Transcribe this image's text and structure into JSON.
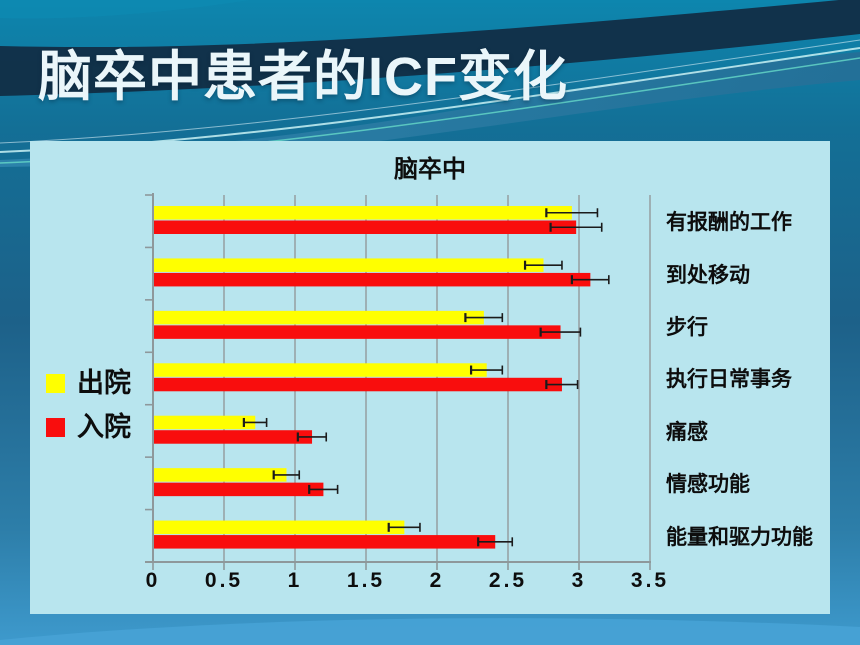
{
  "slide": {
    "title": "脑卒中患者的ICF变化"
  },
  "chart": {
    "title": "脑卒中",
    "x_ticks": [
      "0",
      "0.5",
      "1",
      "1.5",
      "2",
      "2.5",
      "3",
      "3.5"
    ],
    "legend": [
      {
        "label": "出院",
        "color": "#FFFF00"
      },
      {
        "label": "入院",
        "color": "#F90D0D"
      }
    ]
  },
  "chart_data": {
    "type": "bar",
    "orientation": "horizontal",
    "title": "脑卒中",
    "categories": [
      "有报酬的工作",
      "到处移动",
      "步行",
      "执行日常事务",
      "痛感",
      "情感功能",
      "能量和驱力功能"
    ],
    "series": [
      {
        "name": "出院",
        "color": "#FFFF00",
        "values": [
          2.95,
          2.75,
          2.33,
          2.35,
          0.72,
          0.94,
          1.77
        ],
        "errors": [
          0.18,
          0.13,
          0.13,
          0.11,
          0.08,
          0.09,
          0.11
        ]
      },
      {
        "name": "入院",
        "color": "#F90D0D",
        "values": [
          2.98,
          3.08,
          2.87,
          2.88,
          1.12,
          1.2,
          2.41
        ],
        "errors": [
          0.18,
          0.13,
          0.14,
          0.11,
          0.1,
          0.1,
          0.12
        ]
      }
    ],
    "xlim": [
      0,
      3.5
    ],
    "x_tick_step": 0.5,
    "grid": true,
    "error_bars": true,
    "legend_position": "left",
    "category_labels_position": "right"
  },
  "colors": {
    "panel_bg": "#B8E5EE",
    "gridline": "#97A2A6",
    "axis": "#8E989B",
    "error_bar": "#1B1B1B",
    "label_text": "#0D0D0D",
    "title_text": "#EAF6FA"
  }
}
